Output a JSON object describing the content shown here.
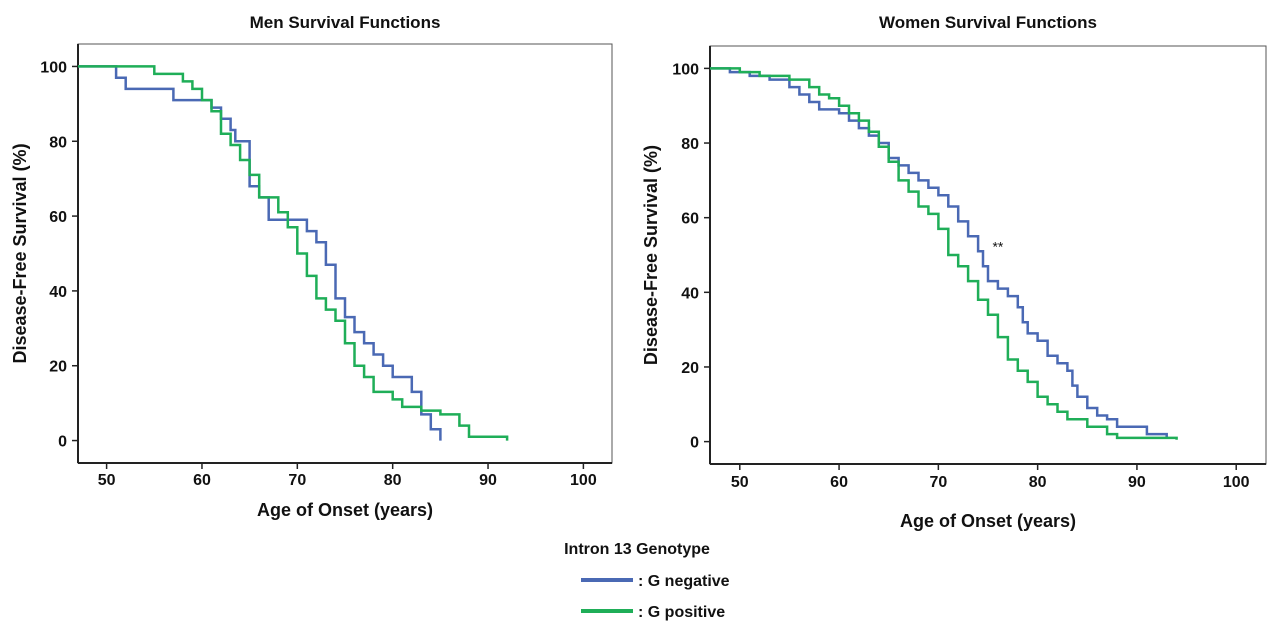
{
  "legend": {
    "title": "Intron 13 Genotype",
    "items": [
      {
        "label": ": G negative",
        "color": "#4a69b4"
      },
      {
        "label": ": G positive",
        "color": "#1fae58"
      }
    ]
  },
  "chart_data": [
    {
      "type": "line",
      "step": true,
      "title": "Men Survival Functions",
      "xlabel": "Age of Onset (years)",
      "ylabel": "Disease-Free Survival (%)",
      "xlim": [
        47,
        103
      ],
      "ylim": [
        -6,
        106
      ],
      "xticks": [
        "50",
        "60",
        "70",
        "80",
        "90",
        "100"
      ],
      "yticks": [
        "0",
        "20",
        "40",
        "60",
        "80",
        "100"
      ],
      "annotation": "",
      "series": [
        {
          "name": "G negative",
          "color": "#4a69b4",
          "points": [
            [
              47,
              100
            ],
            [
              51,
              100
            ],
            [
              51,
              97
            ],
            [
              52,
              97
            ],
            [
              52,
              94
            ],
            [
              57,
              94
            ],
            [
              57,
              91
            ],
            [
              61,
              91
            ],
            [
              61,
              89
            ],
            [
              62,
              89
            ],
            [
              62,
              86
            ],
            [
              63,
              86
            ],
            [
              63,
              83
            ],
            [
              63.5,
              83
            ],
            [
              63.5,
              80
            ],
            [
              65,
              80
            ],
            [
              65,
              68
            ],
            [
              66,
              68
            ],
            [
              66,
              65
            ],
            [
              67,
              65
            ],
            [
              67,
              59
            ],
            [
              71,
              59
            ],
            [
              71,
              56
            ],
            [
              72,
              56
            ],
            [
              72,
              53
            ],
            [
              73,
              53
            ],
            [
              73,
              47
            ],
            [
              74,
              47
            ],
            [
              74,
              38
            ],
            [
              75,
              38
            ],
            [
              75,
              33
            ],
            [
              76,
              33
            ],
            [
              76,
              29
            ],
            [
              77,
              29
            ],
            [
              77,
              26
            ],
            [
              78,
              26
            ],
            [
              78,
              23
            ],
            [
              79,
              23
            ],
            [
              79,
              20
            ],
            [
              80,
              20
            ],
            [
              80,
              17
            ],
            [
              82,
              17
            ],
            [
              82,
              13
            ],
            [
              83,
              13
            ],
            [
              83,
              7
            ],
            [
              84,
              7
            ],
            [
              84,
              3
            ],
            [
              85,
              3
            ],
            [
              85,
              0
            ]
          ]
        },
        {
          "name": "G positive",
          "color": "#1fae58",
          "points": [
            [
              47,
              100
            ],
            [
              55,
              100
            ],
            [
              55,
              98
            ],
            [
              58,
              98
            ],
            [
              58,
              96
            ],
            [
              59,
              96
            ],
            [
              59,
              94
            ],
            [
              60,
              94
            ],
            [
              60,
              91
            ],
            [
              61,
              91
            ],
            [
              61,
              88
            ],
            [
              62,
              88
            ],
            [
              62,
              82
            ],
            [
              63,
              82
            ],
            [
              63,
              79
            ],
            [
              64,
              79
            ],
            [
              64,
              75
            ],
            [
              65,
              75
            ],
            [
              65,
              71
            ],
            [
              66,
              71
            ],
            [
              66,
              65
            ],
            [
              68,
              65
            ],
            [
              68,
              61
            ],
            [
              69,
              61
            ],
            [
              69,
              57
            ],
            [
              70,
              57
            ],
            [
              70,
              50
            ],
            [
              71,
              50
            ],
            [
              71,
              44
            ],
            [
              72,
              44
            ],
            [
              72,
              38
            ],
            [
              73,
              38
            ],
            [
              73,
              35
            ],
            [
              74,
              35
            ],
            [
              74,
              32
            ],
            [
              75,
              32
            ],
            [
              75,
              26
            ],
            [
              76,
              26
            ],
            [
              76,
              20
            ],
            [
              77,
              20
            ],
            [
              77,
              17
            ],
            [
              78,
              17
            ],
            [
              78,
              13
            ],
            [
              80,
              13
            ],
            [
              80,
              11
            ],
            [
              81,
              11
            ],
            [
              81,
              9
            ],
            [
              83,
              9
            ],
            [
              83,
              8
            ],
            [
              85,
              8
            ],
            [
              85,
              7
            ],
            [
              87,
              7
            ],
            [
              87,
              4
            ],
            [
              88,
              4
            ],
            [
              88,
              1
            ],
            [
              92,
              1
            ],
            [
              92,
              0
            ]
          ]
        }
      ]
    },
    {
      "type": "line",
      "step": true,
      "title": "Women Survival Functions",
      "xlabel": "Age of Onset (years)",
      "ylabel": "Disease-Free Survival (%)",
      "xlim": [
        47,
        103
      ],
      "ylim": [
        -6,
        106
      ],
      "xticks": [
        "50",
        "60",
        "70",
        "80",
        "90",
        "100"
      ],
      "yticks": [
        "0",
        "20",
        "40",
        "60",
        "80",
        "100"
      ],
      "annotation": "**",
      "annotation_at": [
        76,
        51
      ],
      "series": [
        {
          "name": "G negative",
          "color": "#4a69b4",
          "points": [
            [
              47,
              100
            ],
            [
              49,
              100
            ],
            [
              49,
              99
            ],
            [
              51,
              99
            ],
            [
              51,
              98
            ],
            [
              53,
              98
            ],
            [
              53,
              97
            ],
            [
              55,
              97
            ],
            [
              55,
              95
            ],
            [
              56,
              95
            ],
            [
              56,
              93
            ],
            [
              57,
              93
            ],
            [
              57,
              91
            ],
            [
              58,
              91
            ],
            [
              58,
              89
            ],
            [
              60,
              89
            ],
            [
              60,
              88
            ],
            [
              61,
              88
            ],
            [
              61,
              86
            ],
            [
              62,
              86
            ],
            [
              62,
              84
            ],
            [
              63,
              84
            ],
            [
              63,
              82
            ],
            [
              64,
              82
            ],
            [
              64,
              80
            ],
            [
              65,
              80
            ],
            [
              65,
              76
            ],
            [
              66,
              76
            ],
            [
              66,
              74
            ],
            [
              67,
              74
            ],
            [
              67,
              72
            ],
            [
              68,
              72
            ],
            [
              68,
              70
            ],
            [
              69,
              70
            ],
            [
              69,
              68
            ],
            [
              70,
              68
            ],
            [
              70,
              66
            ],
            [
              71,
              66
            ],
            [
              71,
              63
            ],
            [
              72,
              63
            ],
            [
              72,
              59
            ],
            [
              73,
              59
            ],
            [
              73,
              55
            ],
            [
              74,
              55
            ],
            [
              74,
              51
            ],
            [
              74.5,
              51
            ],
            [
              74.5,
              47
            ],
            [
              75,
              47
            ],
            [
              75,
              43
            ],
            [
              76,
              43
            ],
            [
              76,
              41
            ],
            [
              77,
              41
            ],
            [
              77,
              39
            ],
            [
              78,
              39
            ],
            [
              78,
              36
            ],
            [
              78.5,
              36
            ],
            [
              78.5,
              32
            ],
            [
              79,
              32
            ],
            [
              79,
              29
            ],
            [
              80,
              29
            ],
            [
              80,
              27
            ],
            [
              81,
              27
            ],
            [
              81,
              23
            ],
            [
              82,
              23
            ],
            [
              82,
              21
            ],
            [
              83,
              21
            ],
            [
              83,
              19
            ],
            [
              83.5,
              19
            ],
            [
              83.5,
              15
            ],
            [
              84,
              15
            ],
            [
              84,
              12
            ],
            [
              85,
              12
            ],
            [
              85,
              9
            ],
            [
              86,
              9
            ],
            [
              86,
              7
            ],
            [
              87,
              7
            ],
            [
              87,
              6
            ],
            [
              88,
              6
            ],
            [
              88,
              4
            ],
            [
              91,
              4
            ],
            [
              91,
              2
            ],
            [
              93,
              2
            ],
            [
              93,
              1
            ]
          ]
        },
        {
          "name": "G positive",
          "color": "#1fae58",
          "points": [
            [
              47,
              100
            ],
            [
              50,
              100
            ],
            [
              50,
              99
            ],
            [
              52,
              99
            ],
            [
              52,
              98
            ],
            [
              55,
              98
            ],
            [
              55,
              97
            ],
            [
              57,
              97
            ],
            [
              57,
              95
            ],
            [
              58,
              95
            ],
            [
              58,
              93
            ],
            [
              59,
              93
            ],
            [
              59,
              92
            ],
            [
              60,
              92
            ],
            [
              60,
              90
            ],
            [
              61,
              90
            ],
            [
              61,
              88
            ],
            [
              62,
              88
            ],
            [
              62,
              86
            ],
            [
              63,
              86
            ],
            [
              63,
              83
            ],
            [
              64,
              83
            ],
            [
              64,
              79
            ],
            [
              65,
              79
            ],
            [
              65,
              75
            ],
            [
              66,
              75
            ],
            [
              66,
              70
            ],
            [
              67,
              70
            ],
            [
              67,
              67
            ],
            [
              68,
              67
            ],
            [
              68,
              63
            ],
            [
              69,
              63
            ],
            [
              69,
              61
            ],
            [
              70,
              61
            ],
            [
              70,
              57
            ],
            [
              71,
              57
            ],
            [
              71,
              50
            ],
            [
              72,
              50
            ],
            [
              72,
              47
            ],
            [
              73,
              47
            ],
            [
              73,
              43
            ],
            [
              74,
              43
            ],
            [
              74,
              38
            ],
            [
              75,
              38
            ],
            [
              75,
              34
            ],
            [
              76,
              34
            ],
            [
              76,
              28
            ],
            [
              77,
              28
            ],
            [
              77,
              22
            ],
            [
              78,
              22
            ],
            [
              78,
              19
            ],
            [
              79,
              19
            ],
            [
              79,
              16
            ],
            [
              80,
              16
            ],
            [
              80,
              12
            ],
            [
              81,
              12
            ],
            [
              81,
              10
            ],
            [
              82,
              10
            ],
            [
              82,
              8
            ],
            [
              83,
              8
            ],
            [
              83,
              6
            ],
            [
              85,
              6
            ],
            [
              85,
              4
            ],
            [
              87,
              4
            ],
            [
              87,
              2
            ],
            [
              88,
              2
            ],
            [
              88,
              1
            ],
            [
              94,
              1
            ],
            [
              94,
              0.5
            ]
          ]
        }
      ]
    }
  ]
}
